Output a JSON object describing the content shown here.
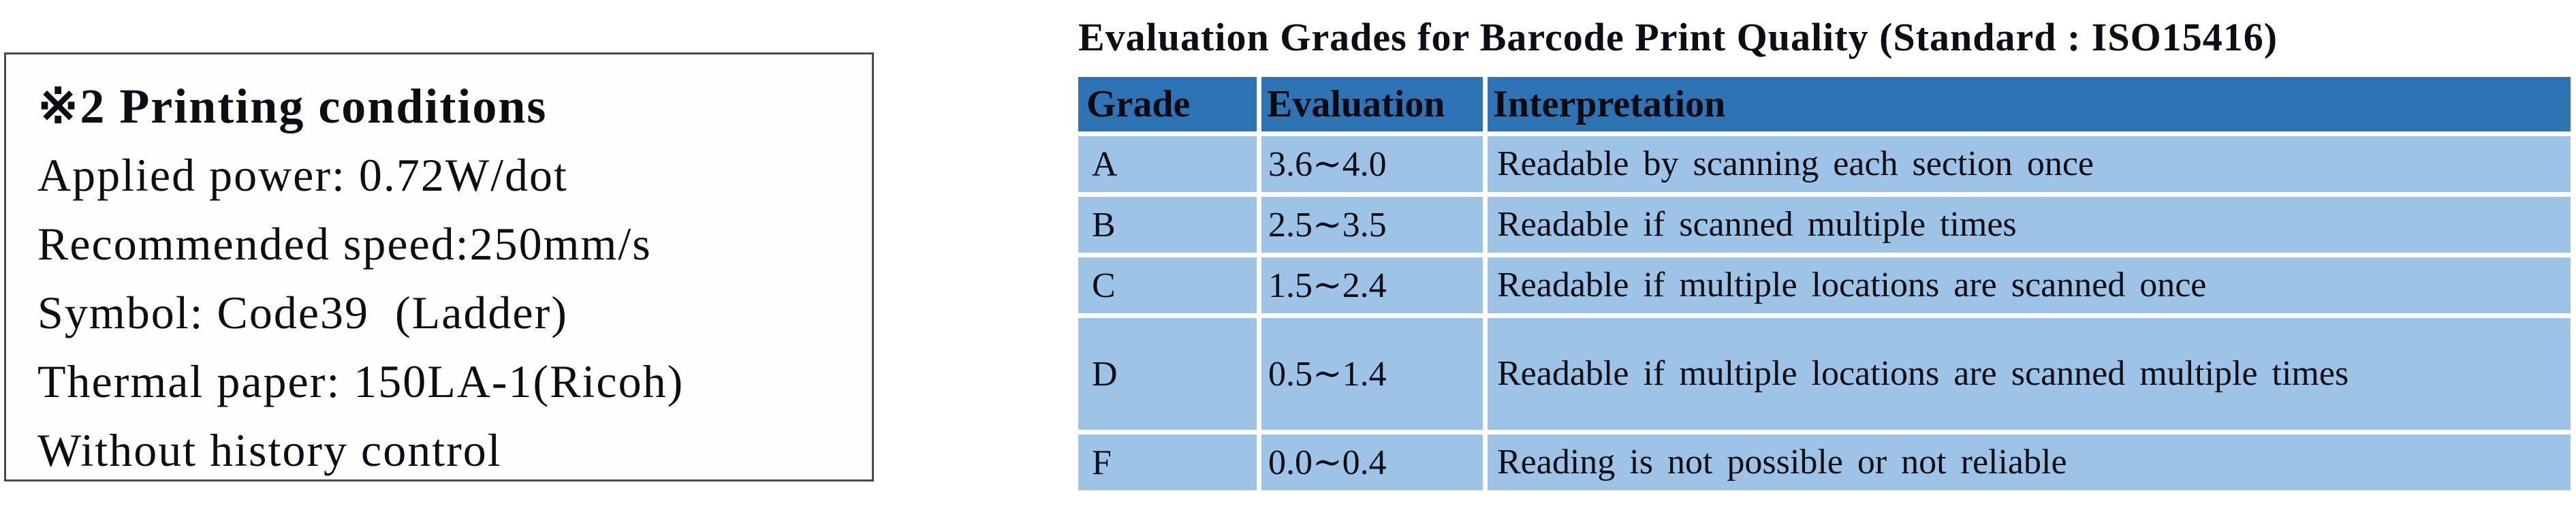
{
  "note_box": {
    "title": "※2 Printing conditions",
    "lines": [
      "Applied power: 0.72W/dot",
      "Recommended speed:250mm/s",
      "Symbol: Code39  (Ladder)",
      "Thermal paper: 150LA-1(Ricoh)",
      "Without history control"
    ]
  },
  "table": {
    "title": "Evaluation Grades for Barcode Print Quality (Standard : ISO15416)",
    "columns": [
      "Grade",
      "Evaluation",
      "Interpretation"
    ],
    "rows": [
      {
        "grade": "A",
        "evaluation": "3.6∼4.0",
        "interpretation": "Readable by scanning each section once"
      },
      {
        "grade": "B",
        "evaluation": "2.5∼3.5",
        "interpretation": "Readable if scanned multiple times"
      },
      {
        "grade": "C",
        "evaluation": "1.5∼2.4",
        "interpretation": "Readable if multiple locations are scanned once"
      },
      {
        "grade": "D",
        "evaluation": "0.5∼1.4",
        "interpretation": "Readable if multiple locations are scanned multiple times"
      },
      {
        "grade": "F",
        "evaluation": "0.0∼0.4",
        "interpretation": "Reading is not possible or not reliable"
      }
    ],
    "colors": {
      "header_bg": "#2E74B5",
      "row_bg": "#9DC3E6"
    }
  }
}
